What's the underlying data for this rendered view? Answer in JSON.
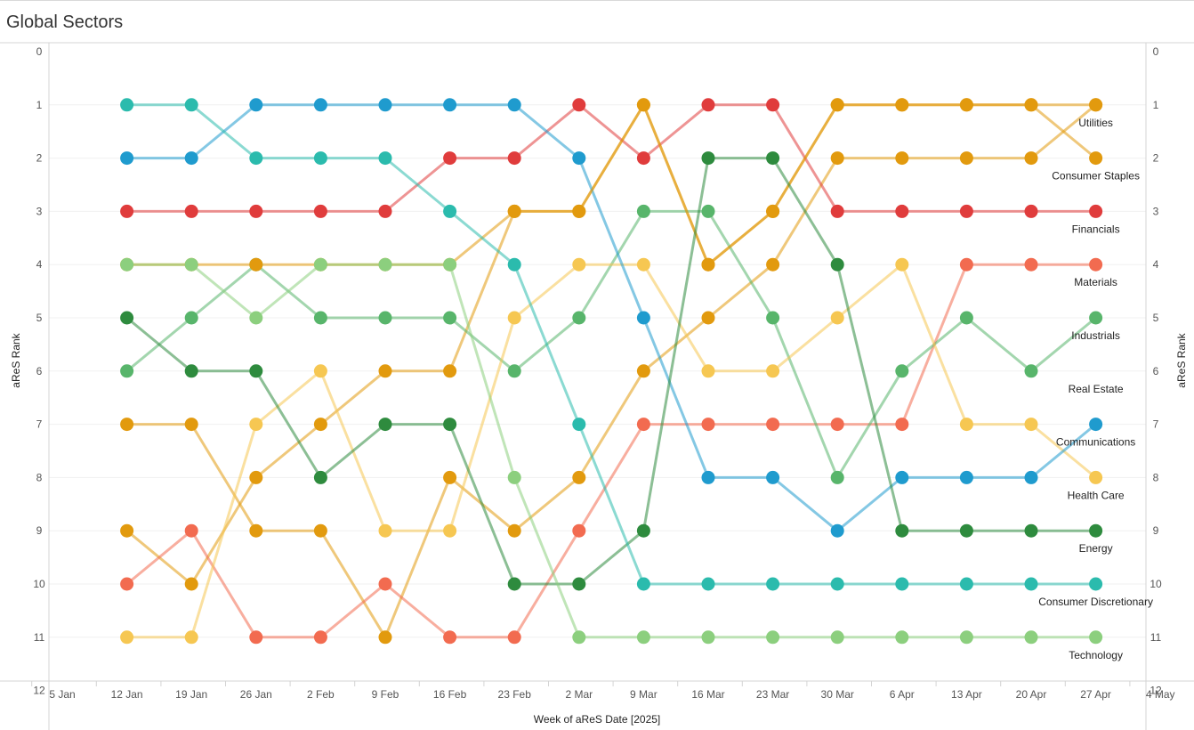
{
  "page": {
    "title": "Global Sectors"
  },
  "chart_data": {
    "type": "line",
    "title": "Global Sectors",
    "xlabel": "Week of aReS Date [2025]",
    "ylabel": "aReS Rank",
    "y_reversed": true,
    "ylim": [
      0,
      12
    ],
    "y_ticks": [
      "0",
      "1",
      "2",
      "3",
      "4",
      "5",
      "6",
      "7",
      "8",
      "9",
      "10",
      "11",
      "12"
    ],
    "x_ticks": [
      "5 Jan",
      "12 Jan",
      "19 Jan",
      "26 Jan",
      "2 Feb",
      "9 Feb",
      "16 Feb",
      "23 Feb",
      "2 Mar",
      "9 Mar",
      "16 Mar",
      "23 Mar",
      "30 Mar",
      "6 Apr",
      "13 Apr",
      "20 Apr",
      "27 Apr",
      "4 May"
    ],
    "x": [
      "12 Jan",
      "19 Jan",
      "26 Jan",
      "2 Feb",
      "9 Feb",
      "16 Feb",
      "23 Feb",
      "2 Mar",
      "9 Mar",
      "16 Mar",
      "23 Mar",
      "30 Mar",
      "6 Apr",
      "13 Apr",
      "20 Apr",
      "27 Apr"
    ],
    "grid": "horizontal",
    "series": [
      {
        "name": "Utilities",
        "color": "#e29a0e",
        "values": [
          9,
          10,
          8,
          7,
          6,
          6,
          3,
          3,
          1,
          4,
          3,
          1,
          1,
          1,
          1,
          2
        ]
      },
      {
        "name": "Consumer Staples",
        "color": "#e29a0e",
        "values": [
          7,
          7,
          9,
          9,
          11,
          8,
          9,
          8,
          6,
          5,
          4,
          2,
          2,
          2,
          2,
          1
        ]
      },
      {
        "name": "Financials",
        "color": "#e03c3c",
        "values": [
          3,
          3,
          3,
          3,
          3,
          2,
          2,
          1,
          2,
          1,
          1,
          3,
          3,
          3,
          3,
          3
        ]
      },
      {
        "name": "Materials",
        "color": "#f26b50",
        "values": [
          10,
          9,
          11,
          11,
          10,
          11,
          11,
          9,
          7,
          7,
          7,
          7,
          7,
          4,
          4,
          4
        ]
      },
      {
        "name": "Industrials",
        "color": "#58b56b",
        "values": [
          6,
          5,
          4,
          5,
          5,
          5,
          6,
          5,
          3,
          3,
          5,
          8,
          6,
          5,
          6,
          5
        ]
      },
      {
        "name": "Real Estate",
        "color": "#f6c752",
        "values": [
          11,
          11,
          7,
          6,
          9,
          9,
          5,
          4,
          4,
          6,
          6,
          5,
          4,
          7,
          7,
          8
        ]
      },
      {
        "name": "Communications",
        "color": "#1f9bce",
        "values": [
          2,
          2,
          1,
          1,
          1,
          1,
          1,
          2,
          5,
          8,
          8,
          9,
          8,
          8,
          8,
          7
        ]
      },
      {
        "name": "Health Care",
        "color": "#e29a0e",
        "values": [
          4,
          4,
          4,
          4,
          4,
          4,
          3,
          3,
          1,
          4,
          3,
          1,
          1,
          1,
          1,
          1
        ]
      },
      {
        "name": "Energy",
        "color": "#2e8b3e",
        "values": [
          5,
          6,
          6,
          8,
          7,
          7,
          10,
          10,
          9,
          2,
          2,
          4,
          9,
          9,
          9,
          9
        ]
      },
      {
        "name": "Consumer Discretionary",
        "color": "#2bbbad",
        "values": [
          1,
          1,
          2,
          2,
          2,
          3,
          4,
          7,
          10,
          10,
          10,
          10,
          10,
          10,
          10,
          10
        ]
      },
      {
        "name": "Technology",
        "color": "#8ccf7e",
        "values": [
          4,
          4,
          5,
          4,
          4,
          4,
          8,
          11,
          11,
          11,
          11,
          11,
          11,
          11,
          11,
          11
        ]
      }
    ],
    "end_labels": [
      "Utilities",
      "Consumer Staples",
      "Financials",
      "Materials",
      "Industrials",
      "Real Estate",
      "Communications",
      "Health Care",
      "Energy",
      "Consumer Discretionary",
      "Technology"
    ]
  }
}
